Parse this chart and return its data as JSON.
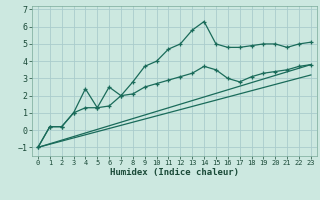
{
  "xlabel": "Humidex (Indice chaleur)",
  "ylabel": "",
  "bg_color": "#cce8e0",
  "grid_color": "#aacccc",
  "line_color": "#1a6b5a",
  "ylim": [
    -1.5,
    7.2
  ],
  "xlim": [
    -0.5,
    23.5
  ],
  "yticks": [
    -1,
    0,
    1,
    2,
    3,
    4,
    5,
    6,
    7
  ],
  "xticks": [
    0,
    1,
    2,
    3,
    4,
    5,
    6,
    7,
    8,
    9,
    10,
    11,
    12,
    13,
    14,
    15,
    16,
    17,
    18,
    19,
    20,
    21,
    22,
    23
  ],
  "line1_x": [
    0,
    1,
    2,
    3,
    4,
    5,
    6,
    7,
    8,
    9,
    10,
    11,
    12,
    13,
    14,
    15,
    16,
    17,
    18,
    19,
    20,
    21,
    22,
    23
  ],
  "line1_y": [
    -1.0,
    0.2,
    0.2,
    1.0,
    2.4,
    1.3,
    2.5,
    2.0,
    2.8,
    3.7,
    4.0,
    4.7,
    5.0,
    5.8,
    6.3,
    5.0,
    4.8,
    4.8,
    4.9,
    5.0,
    5.0,
    4.8,
    5.0,
    5.1
  ],
  "line2_x": [
    0,
    1,
    2,
    3,
    4,
    5,
    6,
    7,
    8,
    9,
    10,
    11,
    12,
    13,
    14,
    15,
    16,
    17,
    18,
    19,
    20,
    21,
    22,
    23
  ],
  "line2_y": [
    -1.0,
    0.2,
    0.2,
    1.0,
    1.3,
    1.3,
    1.4,
    2.0,
    2.1,
    2.5,
    2.7,
    2.9,
    3.1,
    3.3,
    3.7,
    3.5,
    3.0,
    2.8,
    3.1,
    3.3,
    3.4,
    3.5,
    3.7,
    3.8
  ],
  "line3_x": [
    0,
    23
  ],
  "line3_y": [
    -1.0,
    3.8
  ],
  "line4_x": [
    0,
    23
  ],
  "line4_y": [
    -1.0,
    3.2
  ]
}
